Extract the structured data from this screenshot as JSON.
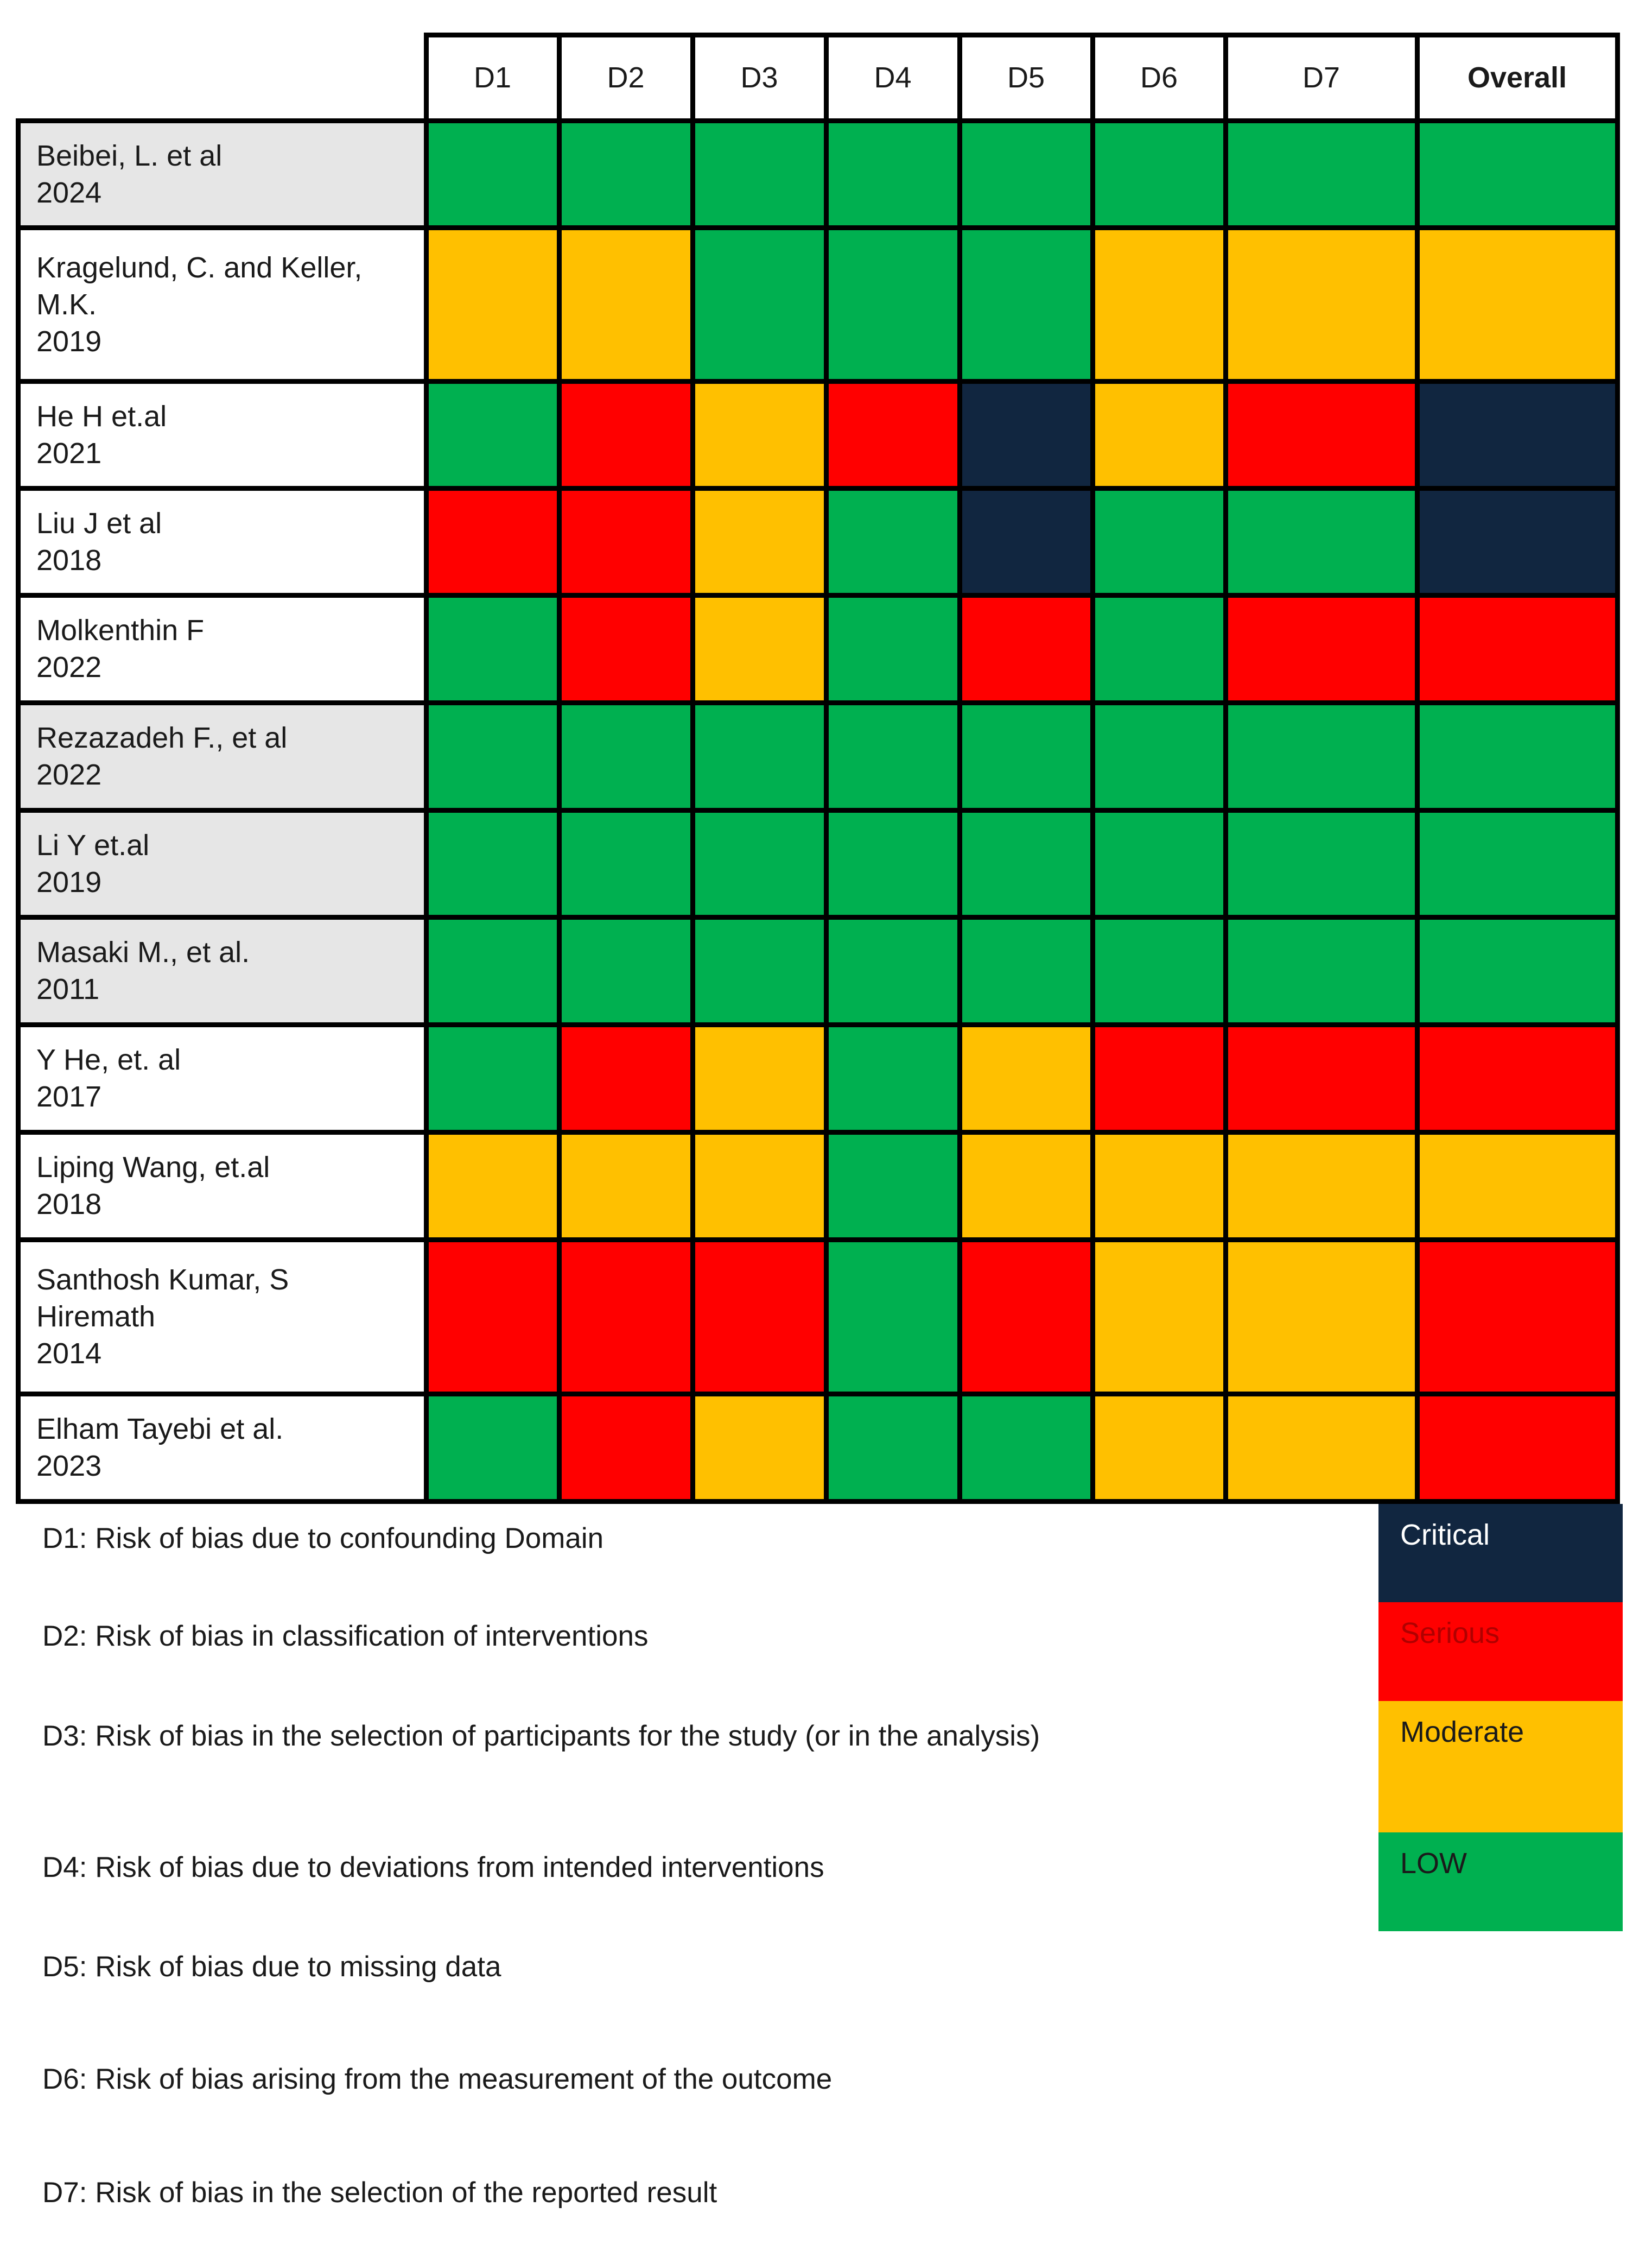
{
  "chart_data": {
    "type": "table",
    "title": "",
    "columns": [
      "D1",
      "D2",
      "D3",
      "D4",
      "D5",
      "D6",
      "D7",
      "Overall"
    ],
    "rows": [
      {
        "study": [
          "Beibei, L. et al",
          "2024"
        ],
        "shaded": true,
        "ratings": [
          "Low",
          "Low",
          "Low",
          "Low",
          "Low",
          "Low",
          "Low",
          "Low"
        ]
      },
      {
        "study": [
          "Kragelund, C. and Keller,",
          "M.K.",
          "2019"
        ],
        "shaded": false,
        "ratings": [
          "Moderate",
          "Moderate",
          "Low",
          "Low",
          "Low",
          "Moderate",
          "Moderate",
          "Moderate"
        ]
      },
      {
        "study": [
          "He H et.al",
          "2021"
        ],
        "shaded": false,
        "ratings": [
          "Low",
          "Serious",
          "Moderate",
          "Serious",
          "Critical",
          "Moderate",
          "Serious",
          "Critical"
        ]
      },
      {
        "study": [
          "Liu J et al",
          "2018"
        ],
        "shaded": false,
        "ratings": [
          "Serious",
          "Serious",
          "Moderate",
          "Low",
          "Critical",
          "Low",
          "Low",
          "Critical"
        ]
      },
      {
        "study": [
          "Molkenthin F",
          "2022"
        ],
        "shaded": false,
        "ratings": [
          "Low",
          "Serious",
          "Moderate",
          "Low",
          "Serious",
          "Low",
          "Serious",
          "Serious"
        ]
      },
      {
        "study": [
          "Rezazadeh F., et al",
          "2022"
        ],
        "shaded": true,
        "ratings": [
          "Low",
          "Low",
          "Low",
          "Low",
          "Low",
          "Low",
          "Low",
          "Low"
        ]
      },
      {
        "study": [
          "Li Y et.al",
          "2019"
        ],
        "shaded": true,
        "ratings": [
          "Low",
          "Low",
          "Low",
          "Low",
          "Low",
          "Low",
          "Low",
          "Low"
        ]
      },
      {
        "study": [
          "Masaki M., et al.",
          "2011"
        ],
        "shaded": true,
        "ratings": [
          "Low",
          "Low",
          "Low",
          "Low",
          "Low",
          "Low",
          "Low",
          "Low"
        ]
      },
      {
        "study": [
          "Y He, et. al",
          "2017"
        ],
        "shaded": false,
        "ratings": [
          "Low",
          "Serious",
          "Moderate",
          "Low",
          "Moderate",
          "Serious",
          "Serious",
          "Serious"
        ]
      },
      {
        "study": [
          "Liping Wang, et.al",
          "2018"
        ],
        "shaded": false,
        "ratings": [
          "Moderate",
          "Moderate",
          "Moderate",
          "Low",
          "Moderate",
          "Moderate",
          "Moderate",
          "Moderate"
        ]
      },
      {
        "study": [
          "Santhosh Kumar, S",
          "Hiremath",
          "2014"
        ],
        "shaded": false,
        "ratings": [
          "Serious",
          "Serious",
          "Serious",
          "Low",
          "Serious",
          "Moderate",
          "Moderate",
          "Serious"
        ]
      },
      {
        "study": [
          "Elham Tayebi et al.",
          "2023"
        ],
        "shaded": false,
        "ratings": [
          "Low",
          "Serious",
          "Moderate",
          "Low",
          "Low",
          "Moderate",
          "Moderate",
          "Serious"
        ]
      }
    ],
    "legend": [
      {
        "label": "Critical",
        "rating": "Critical",
        "text_color": "#ffffff"
      },
      {
        "label": "Serious",
        "rating": "Serious",
        "text_color": "#b00000"
      },
      {
        "label": "Moderate",
        "rating": "Moderate",
        "text_color": "#1a1a1a"
      },
      {
        "label": "LOW",
        "rating": "Low",
        "text_color": "#1a1a1a"
      }
    ],
    "colors": {
      "Low": "#00b050",
      "Moderate": "#ffc000",
      "Serious": "#ff0000",
      "Critical": "#112640",
      "shaded_label_bg": "#e6e6e6",
      "label_bg": "#ffffff",
      "border": "#000000"
    },
    "domain_definitions": [
      "D1: Risk of bias due to confounding Domain",
      "D2: Risk of bias in classification of interventions",
      "D3: Risk of bias in the selection of participants for the study (or in the analysis)",
      "D4: Risk of bias due to deviations from intended interventions",
      "D5: Risk of bias due to missing data",
      "D6: Risk of bias arising from the measurement of the outcome",
      "D7: Risk of bias in the selection of the reported result"
    ]
  }
}
